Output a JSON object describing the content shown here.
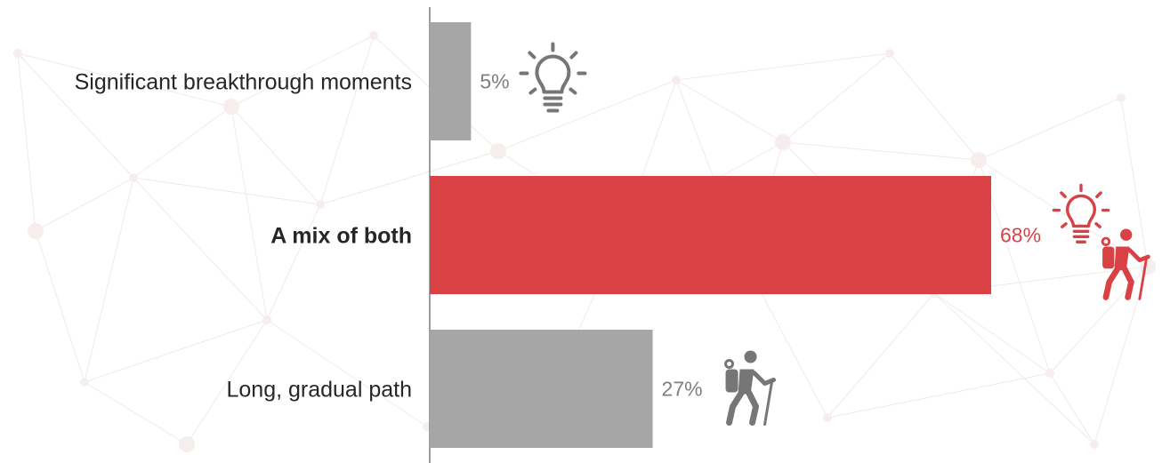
{
  "chart_data": {
    "type": "bar",
    "orientation": "horizontal",
    "categories": [
      "Significant breakthrough moments",
      "A mix of both",
      "Long, gradual path"
    ],
    "values": [
      5,
      68,
      27
    ],
    "value_labels": [
      "5%",
      "68%",
      "27%"
    ],
    "highlight_index": 1,
    "icons": [
      [
        "lightbulb-icon"
      ],
      [
        "lightbulb-icon",
        "hiker-icon"
      ],
      [
        "hiker-icon"
      ]
    ],
    "grid": false,
    "legend": "none"
  },
  "colors": {
    "default_bar": "#a6a6a6",
    "highlight_bar": "#d94144",
    "default_label": "#7f7f7f",
    "highlight_label": "#d94144",
    "default_icon": "#767676",
    "highlight_icon": "#d94144",
    "axis": "#7f7f7f"
  }
}
